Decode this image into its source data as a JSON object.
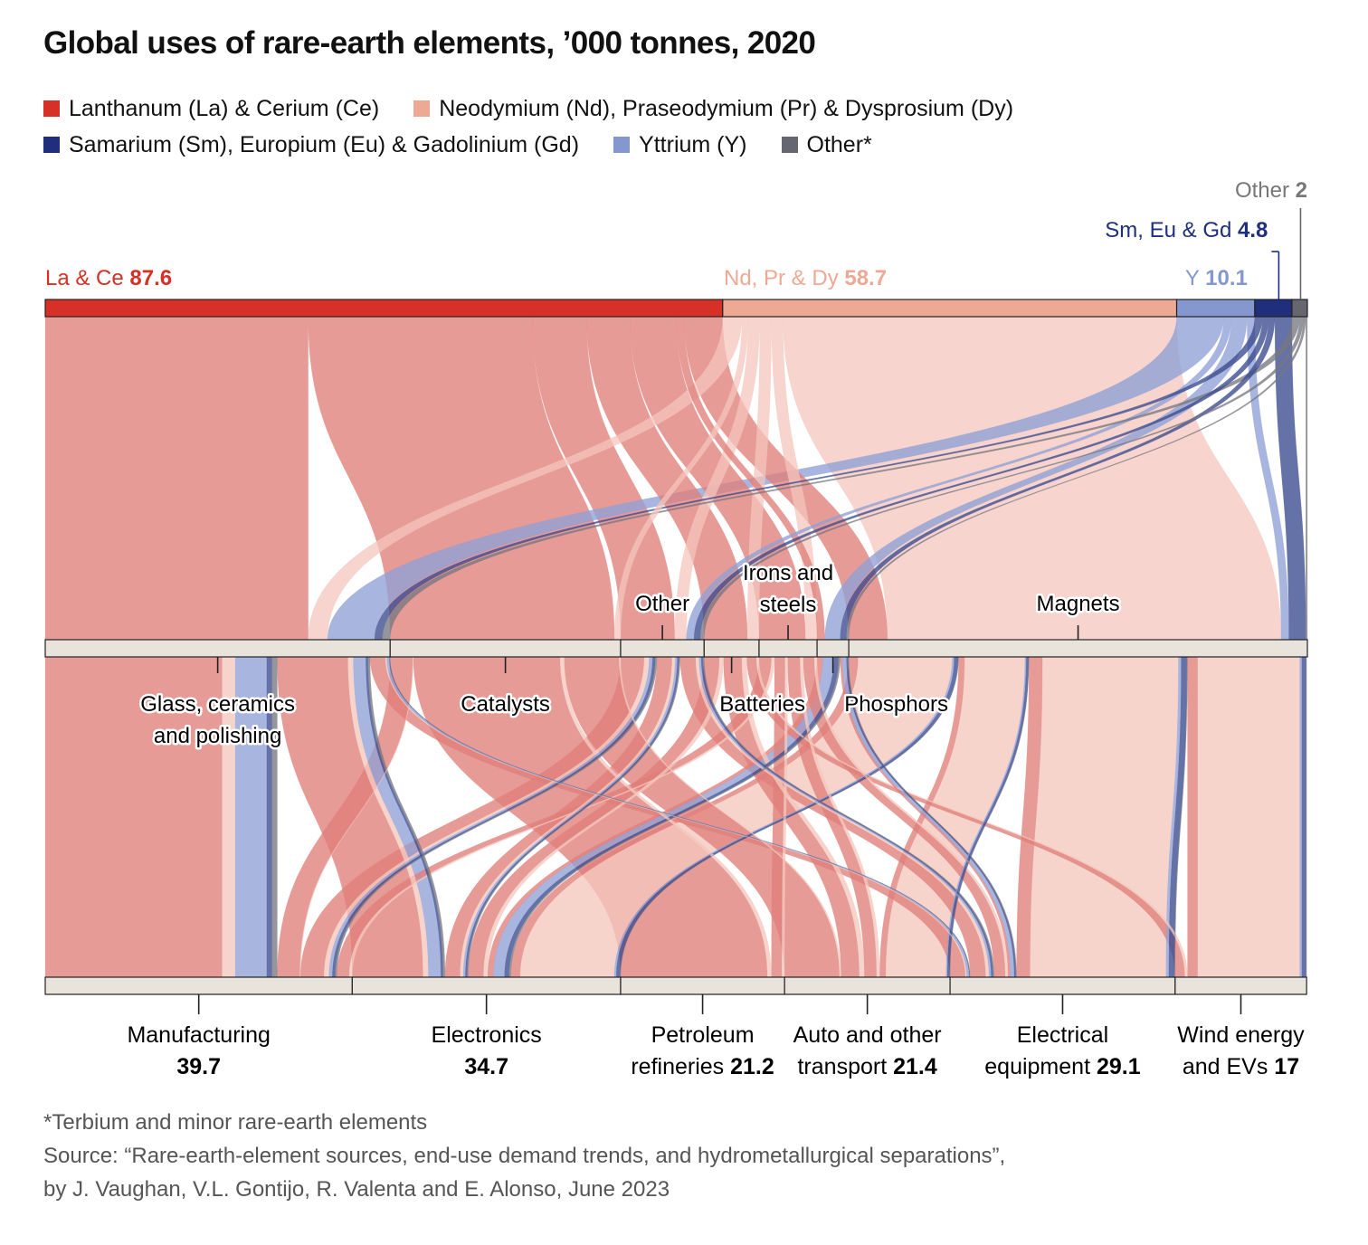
{
  "title": "Global uses of rare-earth elements, ’000 tonnes, 2020",
  "legend": [
    {
      "label": "Lanthanum (La) & Cerium (Ce)",
      "color": "#d63027"
    },
    {
      "label": "Neodymium (Nd), Praseodymium (Pr) & Dysprosium (Dy)",
      "color": "#eea995"
    },
    {
      "label": "Samarium (Sm), Europium (Eu) & Gadolinium (Gd)",
      "color": "#1f2f7e"
    },
    {
      "label": "Yttrium (Y)",
      "color": "#8497cf"
    },
    {
      "label": "Other*",
      "color": "#666670"
    }
  ],
  "chart_data": {
    "type": "sankey",
    "units": "’000 tonnes",
    "sources": [
      {
        "id": "lace",
        "label": "La & Ce",
        "value": 87.6,
        "color": "#d63027",
        "flow_color": "#e07f7a"
      },
      {
        "id": "ndprdy",
        "label": "Nd, Pr & Dy",
        "value": 58.7,
        "color": "#eea995",
        "flow_color": "#f4c6bc"
      },
      {
        "id": "y",
        "label": "Y",
        "value": 10.1,
        "color": "#8497cf",
        "flow_color": "#8ea0d6"
      },
      {
        "id": "smeugd",
        "label": "Sm, Eu & Gd",
        "value": 4.8,
        "color": "#1f2f7e",
        "flow_color": "#3a4a8f"
      },
      {
        "id": "other",
        "label": "Other",
        "value": 2.0,
        "color": "#666670",
        "flow_color": "#777780"
      }
    ],
    "applications": [
      {
        "id": "glass",
        "label": [
          "Glass, ceramics",
          "and polishing"
        ]
      },
      {
        "id": "catalysts",
        "label": [
          "Catalysts"
        ]
      },
      {
        "id": "other_app",
        "label": [
          "Other"
        ]
      },
      {
        "id": "batteries",
        "label": [
          "Batteries"
        ]
      },
      {
        "id": "irons",
        "label": [
          "Irons and",
          "steels"
        ]
      },
      {
        "id": "phosphors",
        "label": [
          "Phosphors"
        ]
      },
      {
        "id": "magnets",
        "label": [
          "Magnets"
        ]
      }
    ],
    "end_uses": [
      {
        "id": "manufacturing",
        "label": [
          "Manufacturing"
        ],
        "value": 39.7
      },
      {
        "id": "electronics",
        "label": [
          "Electronics"
        ],
        "value": 34.7
      },
      {
        "id": "petroleum",
        "label": [
          "Petroleum",
          "refineries"
        ],
        "value": 21.2
      },
      {
        "id": "auto",
        "label": [
          "Auto and other",
          "transport"
        ],
        "value": 21.4
      },
      {
        "id": "electrical",
        "label": [
          "Electrical",
          "equipment"
        ],
        "value": 29.1
      },
      {
        "id": "wind",
        "label": [
          "Wind energy",
          "and EVs"
        ],
        "value": 17.0
      }
    ],
    "flows_source_to_application": [
      [
        "lace",
        "glass",
        34.0
      ],
      [
        "lace",
        "catalysts",
        29.0
      ],
      [
        "lace",
        "other_app",
        7.0
      ],
      [
        "lace",
        "batteries",
        5.6
      ],
      [
        "lace",
        "irons",
        6.0
      ],
      [
        "lace",
        "phosphors",
        1.0
      ],
      [
        "lace",
        "magnets",
        5.0
      ],
      [
        "ndprdy",
        "glass",
        2.5
      ],
      [
        "ndprdy",
        "catalysts",
        0.8
      ],
      [
        "ndprdy",
        "other_app",
        1.5
      ],
      [
        "ndprdy",
        "batteries",
        1.5
      ],
      [
        "ndprdy",
        "irons",
        1.5
      ],
      [
        "ndprdy",
        "magnets",
        50.9
      ],
      [
        "y",
        "glass",
        6.1
      ],
      [
        "y",
        "other_app",
        1.0
      ],
      [
        "y",
        "phosphors",
        2.0
      ],
      [
        "y",
        "magnets",
        1.0
      ],
      [
        "smeugd",
        "glass",
        1.0
      ],
      [
        "smeugd",
        "other_app",
        0.8
      ],
      [
        "smeugd",
        "phosphors",
        0.8
      ],
      [
        "smeugd",
        "magnets",
        2.2
      ],
      [
        "other",
        "glass",
        1.0
      ],
      [
        "other",
        "other_app",
        0.5
      ],
      [
        "other",
        "phosphors",
        0.3
      ],
      [
        "other",
        "magnets",
        0.2
      ]
    ],
    "flows_application_to_end_use": [
      [
        "glass",
        "manufacturing",
        30.0
      ],
      [
        "glass",
        "electronics",
        12.0
      ],
      [
        "glass",
        "electrical",
        2.6
      ],
      [
        "catalysts",
        "manufacturing",
        3.0
      ],
      [
        "catalysts",
        "petroleum",
        19.5
      ],
      [
        "catalysts",
        "auto",
        7.3
      ],
      [
        "other_app",
        "manufacturing",
        4.7
      ],
      [
        "other_app",
        "electronics",
        3.0
      ],
      [
        "other_app",
        "electrical",
        3.1
      ],
      [
        "batteries",
        "electronics",
        2.5
      ],
      [
        "batteries",
        "auto",
        3.0
      ],
      [
        "batteries",
        "wind",
        1.6
      ],
      [
        "irons",
        "manufacturing",
        2.0
      ],
      [
        "irons",
        "petroleum",
        1.7
      ],
      [
        "irons",
        "auto",
        2.0
      ],
      [
        "irons",
        "electrical",
        1.8
      ],
      [
        "phosphors",
        "electronics",
        3.0
      ],
      [
        "phosphors",
        "electrical",
        1.1
      ],
      [
        "magnets",
        "electronics",
        14.2
      ],
      [
        "magnets",
        "auto",
        9.1
      ],
      [
        "magnets",
        "electrical",
        20.5
      ],
      [
        "magnets",
        "wind",
        15.4
      ]
    ],
    "footnote": "*Terbium and minor rare-earth elements",
    "source_lines": [
      "Source: “Rare-earth-element sources, end-use demand trends, and hydrometallurgical separations”,",
      "by J. Vaughan, V.L. Gontijo, R. Valenta and E. Alonso, June 2023"
    ]
  }
}
